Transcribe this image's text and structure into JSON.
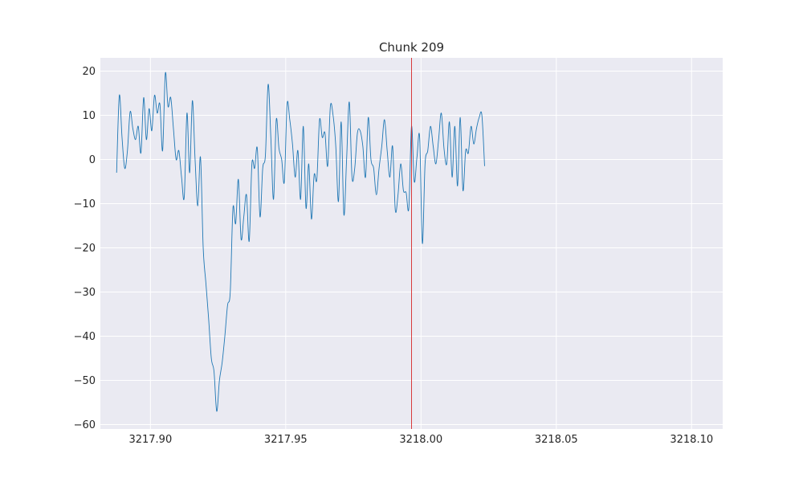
{
  "chart_data": {
    "type": "line",
    "title": "Chunk 209",
    "xlabel": "",
    "ylabel": "",
    "xlim": [
      3217.8815,
      3218.1115
    ],
    "ylim": [
      -61,
      23
    ],
    "x_ticks": [
      3217.9,
      3217.95,
      3218.0,
      3218.05,
      3218.1
    ],
    "x_tick_labels": [
      "3217.90",
      "3217.95",
      "3218.00",
      "3218.05",
      "3218.10"
    ],
    "y_ticks": [
      20,
      10,
      0,
      -10,
      -20,
      -30,
      -40,
      -50,
      -60
    ],
    "y_tick_labels": [
      "20",
      "10",
      "0",
      "−10",
      "−20",
      "−30",
      "−40",
      "−50",
      "−60"
    ],
    "grid": true,
    "vline": {
      "x": 3217.9965,
      "color": "#d62728"
    },
    "series": [
      {
        "color": "#1f77b4",
        "x_start": 3217.8875,
        "x_step": 0.001,
        "values": [
          -3,
          14.5,
          5,
          -2,
          2,
          10.8,
          7,
          4.5,
          7.5,
          1.5,
          14,
          4.5,
          11.5,
          6.5,
          14.5,
          10.5,
          12.5,
          2,
          19.5,
          12,
          14,
          7,
          0,
          2,
          -4,
          -8.5,
          10.5,
          -3,
          13.3,
          0,
          -10.5,
          0.5,
          -20,
          -28,
          -36,
          -45,
          -48,
          -57,
          -50,
          -46,
          -40,
          -33,
          -30,
          -11,
          -14.5,
          -4.5,
          -18,
          -13,
          -8,
          -18.5,
          -1,
          -2,
          2.5,
          -13,
          -2,
          1,
          17,
          5,
          -9,
          9,
          2.5,
          0,
          -5,
          12.5,
          9,
          3.5,
          -4,
          2,
          -9,
          7.5,
          -11,
          -1,
          -13.5,
          -3.5,
          -4.5,
          9,
          5,
          6,
          -1.5,
          12,
          10,
          3,
          -9.5,
          8.5,
          -12.5,
          0,
          13,
          -4,
          -2,
          6,
          6.5,
          3,
          -4,
          9.5,
          0,
          -2,
          -8,
          -2,
          3,
          9,
          2,
          -4,
          3,
          -11.5,
          -8,
          -1,
          -7,
          -7.5,
          -11,
          7.5,
          -5,
          0.5,
          5,
          -19,
          -1,
          2,
          7.5,
          3,
          -1,
          4.5,
          10.5,
          2.5,
          -1,
          8.5,
          -4,
          7.5,
          -6,
          9.5,
          -7,
          2,
          1.5,
          7.5,
          3.5,
          7,
          9.5,
          10,
          -1.5
        ]
      }
    ]
  }
}
